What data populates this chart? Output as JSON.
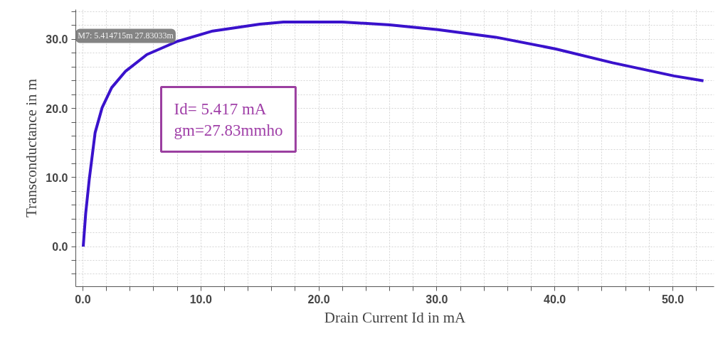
{
  "chart_data": {
    "type": "line",
    "xlabel": "Drain Current Id in mA",
    "ylabel": "Transconductance in m",
    "x": [
      0.03,
      0.24,
      0.54,
      1.04,
      1.63,
      2.44,
      3.63,
      5.43,
      8.0,
      11.0,
      15.0,
      17.0,
      20.0,
      22.0,
      23.0,
      26.0,
      30.1,
      35.0,
      40.1,
      44.9,
      50.1,
      52.6
    ],
    "series": [
      {
        "color": "#3a12cc",
        "values": [
          0,
          4.8,
          9.7,
          16.5,
          20.1,
          23.0,
          25.4,
          27.8,
          29.7,
          31.2,
          32.2,
          32.5,
          32.5,
          32.5,
          32.4,
          32.1,
          31.4,
          30.3,
          28.6,
          26.6,
          24.7,
          24.0
        ]
      }
    ],
    "xlim": [
      -0.6,
      53.5
    ],
    "ylim": [
      -5.8,
      34.3
    ],
    "xticks": [
      {
        "value": 0,
        "label": "0.0"
      },
      {
        "value": 2,
        "label": null
      },
      {
        "value": 4,
        "label": null
      },
      {
        "value": 6,
        "label": null
      },
      {
        "value": 8,
        "label": null
      },
      {
        "value": 10,
        "label": "10.0"
      },
      {
        "value": 12,
        "label": null
      },
      {
        "value": 14,
        "label": null
      },
      {
        "value": 16,
        "label": null
      },
      {
        "value": 18,
        "label": null
      },
      {
        "value": 20,
        "label": "20.0"
      },
      {
        "value": 22,
        "label": null
      },
      {
        "value": 24,
        "label": null
      },
      {
        "value": 26,
        "label": null
      },
      {
        "value": 28,
        "label": null
      },
      {
        "value": 30,
        "label": "30.0"
      },
      {
        "value": 32,
        "label": null
      },
      {
        "value": 34,
        "label": null
      },
      {
        "value": 36,
        "label": null
      },
      {
        "value": 38,
        "label": null
      },
      {
        "value": 40,
        "label": "40.0"
      },
      {
        "value": 42,
        "label": null
      },
      {
        "value": 44,
        "label": null
      },
      {
        "value": 46,
        "label": null
      },
      {
        "value": 48,
        "label": null
      },
      {
        "value": 50,
        "label": "50.0"
      },
      {
        "value": 52,
        "label": null
      }
    ],
    "yticks": [
      {
        "value": -4,
        "label": null
      },
      {
        "value": -2,
        "label": null
      },
      {
        "value": 0,
        "label": "0.0"
      },
      {
        "value": 2,
        "label": null
      },
      {
        "value": 4,
        "label": null
      },
      {
        "value": 6,
        "label": null
      },
      {
        "value": 8,
        "label": null
      },
      {
        "value": 10,
        "label": "10.0"
      },
      {
        "value": 12,
        "label": null
      },
      {
        "value": 14,
        "label": null
      },
      {
        "value": 16,
        "label": null
      },
      {
        "value": 18,
        "label": null
      },
      {
        "value": 20,
        "label": "20.0"
      },
      {
        "value": 22,
        "label": null
      },
      {
        "value": 24,
        "label": null
      },
      {
        "value": 26,
        "label": null
      },
      {
        "value": 28,
        "label": null
      },
      {
        "value": 30,
        "label": "30.0"
      },
      {
        "value": 32,
        "label": null
      },
      {
        "value": 34,
        "label": null
      }
    ],
    "grid": true,
    "marker": "none",
    "line_style": "solid",
    "annotations": [
      {
        "text": "M7: 5.414715m 27.83033m",
        "x": 5.414715,
        "y": 27.83033
      },
      "Id= 5.417 mA\ngm=27.83mmho"
    ]
  }
}
